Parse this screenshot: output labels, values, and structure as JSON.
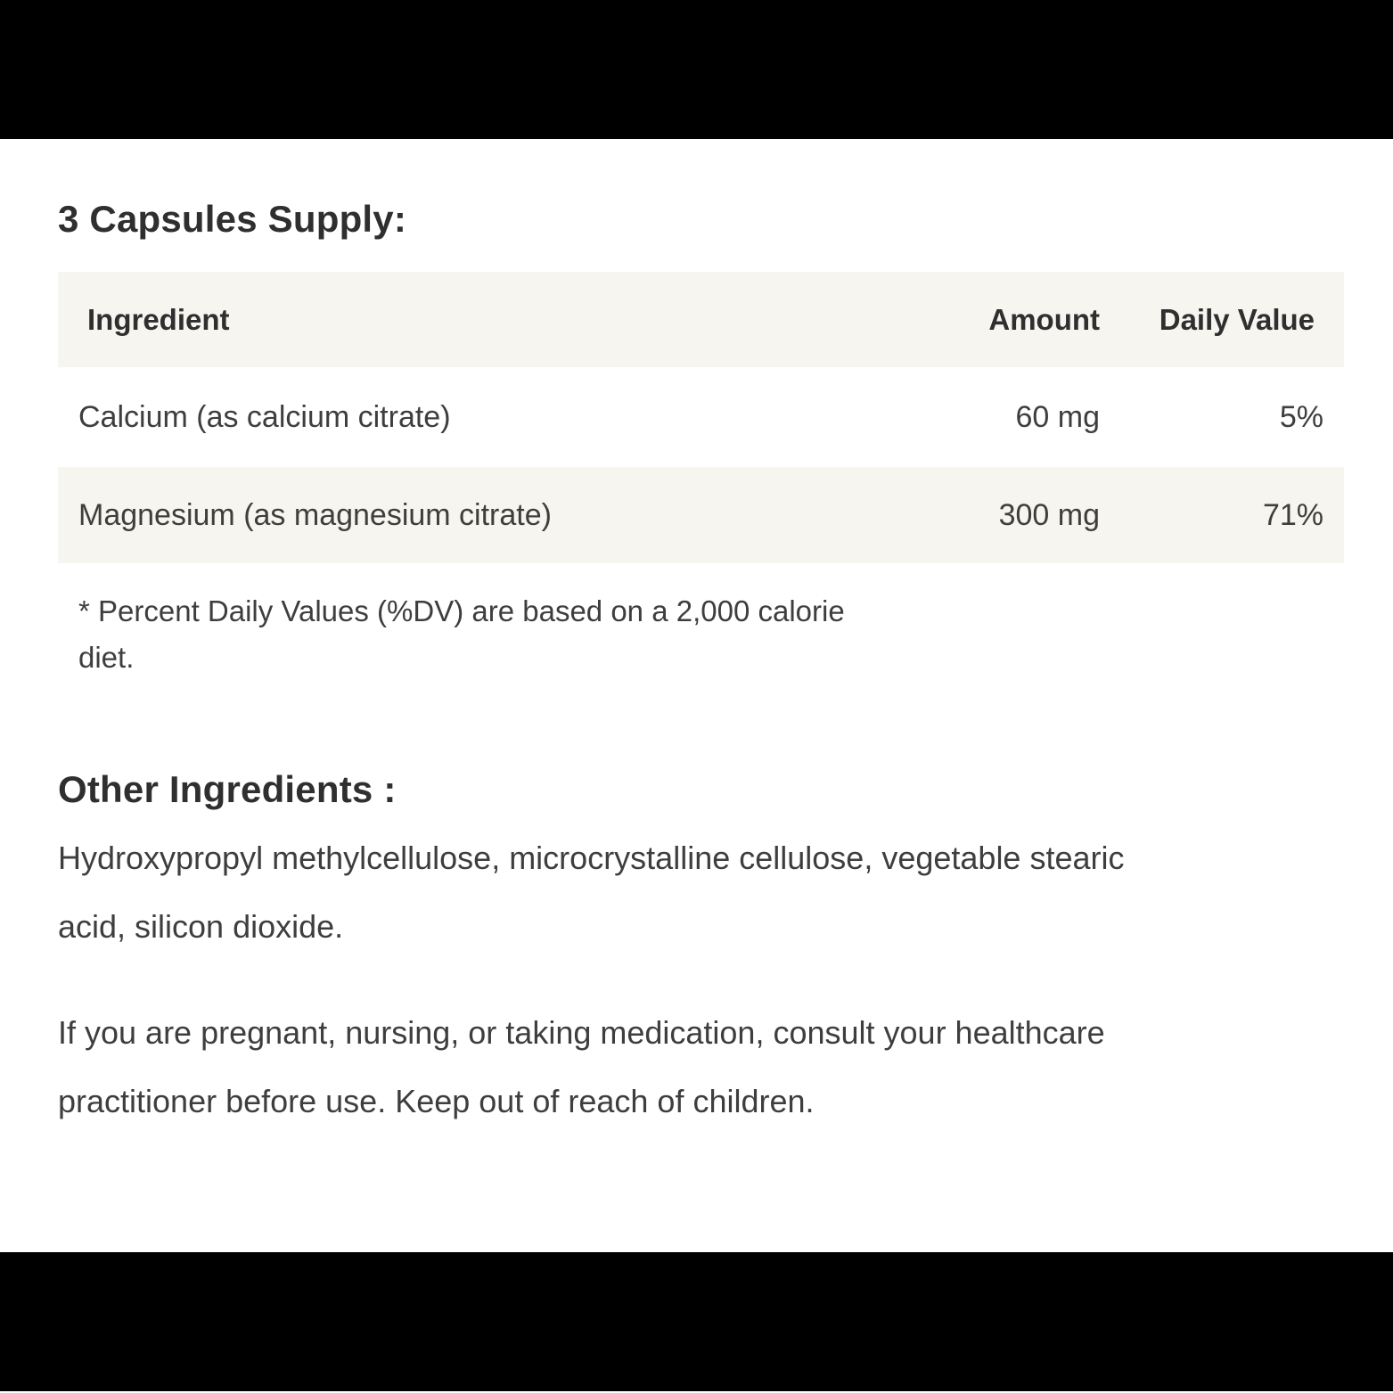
{
  "supply": {
    "title": "3 Capsules Supply:"
  },
  "table": {
    "headers": {
      "ingredient": "Ingredient",
      "amount": "Amount",
      "daily_value": "Daily Value"
    },
    "rows": [
      {
        "ingredient": "Calcium (as calcium citrate)",
        "amount": "60 mg",
        "daily_value": "5%"
      },
      {
        "ingredient": "Magnesium (as magnesium citrate)",
        "amount": "300 mg",
        "daily_value": "71%"
      }
    ]
  },
  "footnote": {
    "lines": [
      "* Percent Daily Values (%DV) are based on a 2,000 calorie",
      "diet."
    ]
  },
  "other_ingredients": {
    "title": "Other Ingredients :",
    "lines": [
      "Hydroxypropyl methylcellulose, microcrystalline cellulose, vegetable stearic",
      "acid, silicon dioxide."
    ]
  },
  "warning": {
    "lines": [
      "If you are pregnant, nursing, or taking medication, consult your healthcare",
      "practitioner before use. Keep out of reach of children."
    ]
  },
  "colors": {
    "banner": "#000000",
    "table_band": "#f7f5ef",
    "text": "#3e3e3e",
    "heading_text": "#2f2f2f",
    "background": "#ffffff"
  }
}
